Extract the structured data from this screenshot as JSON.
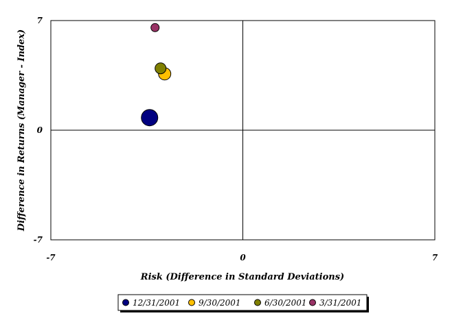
{
  "chart_data": {
    "type": "scatter",
    "title": "",
    "xlabel": "Risk (Difference in Standard Deviations)",
    "ylabel": "Difference in Returns (Manager - Index)",
    "xlim": [
      -7,
      7
    ],
    "ylim": [
      -7,
      7
    ],
    "x_ticks": [
      -7,
      0,
      7
    ],
    "y_ticks": [
      -7,
      0,
      7
    ],
    "x_tick_labels": [
      "-7",
      "0",
      "7"
    ],
    "y_tick_labels": [
      "-7",
      "0",
      "7"
    ],
    "grid": false,
    "legend_position": "bottom",
    "series": [
      {
        "name": "12/31/2001",
        "color": "#000080",
        "x": -3.4,
        "y": 0.8,
        "size": "large"
      },
      {
        "name": "9/30/2001",
        "color": "#FFC000",
        "x": -2.85,
        "y": 3.6,
        "size": "medium"
      },
      {
        "name": "6/30/2001",
        "color": "#808000",
        "x": -3.0,
        "y": 3.95,
        "size": "small"
      },
      {
        "name": "3/31/2001",
        "color": "#993366",
        "x": -3.2,
        "y": 6.55,
        "size": "xsmall"
      }
    ]
  }
}
